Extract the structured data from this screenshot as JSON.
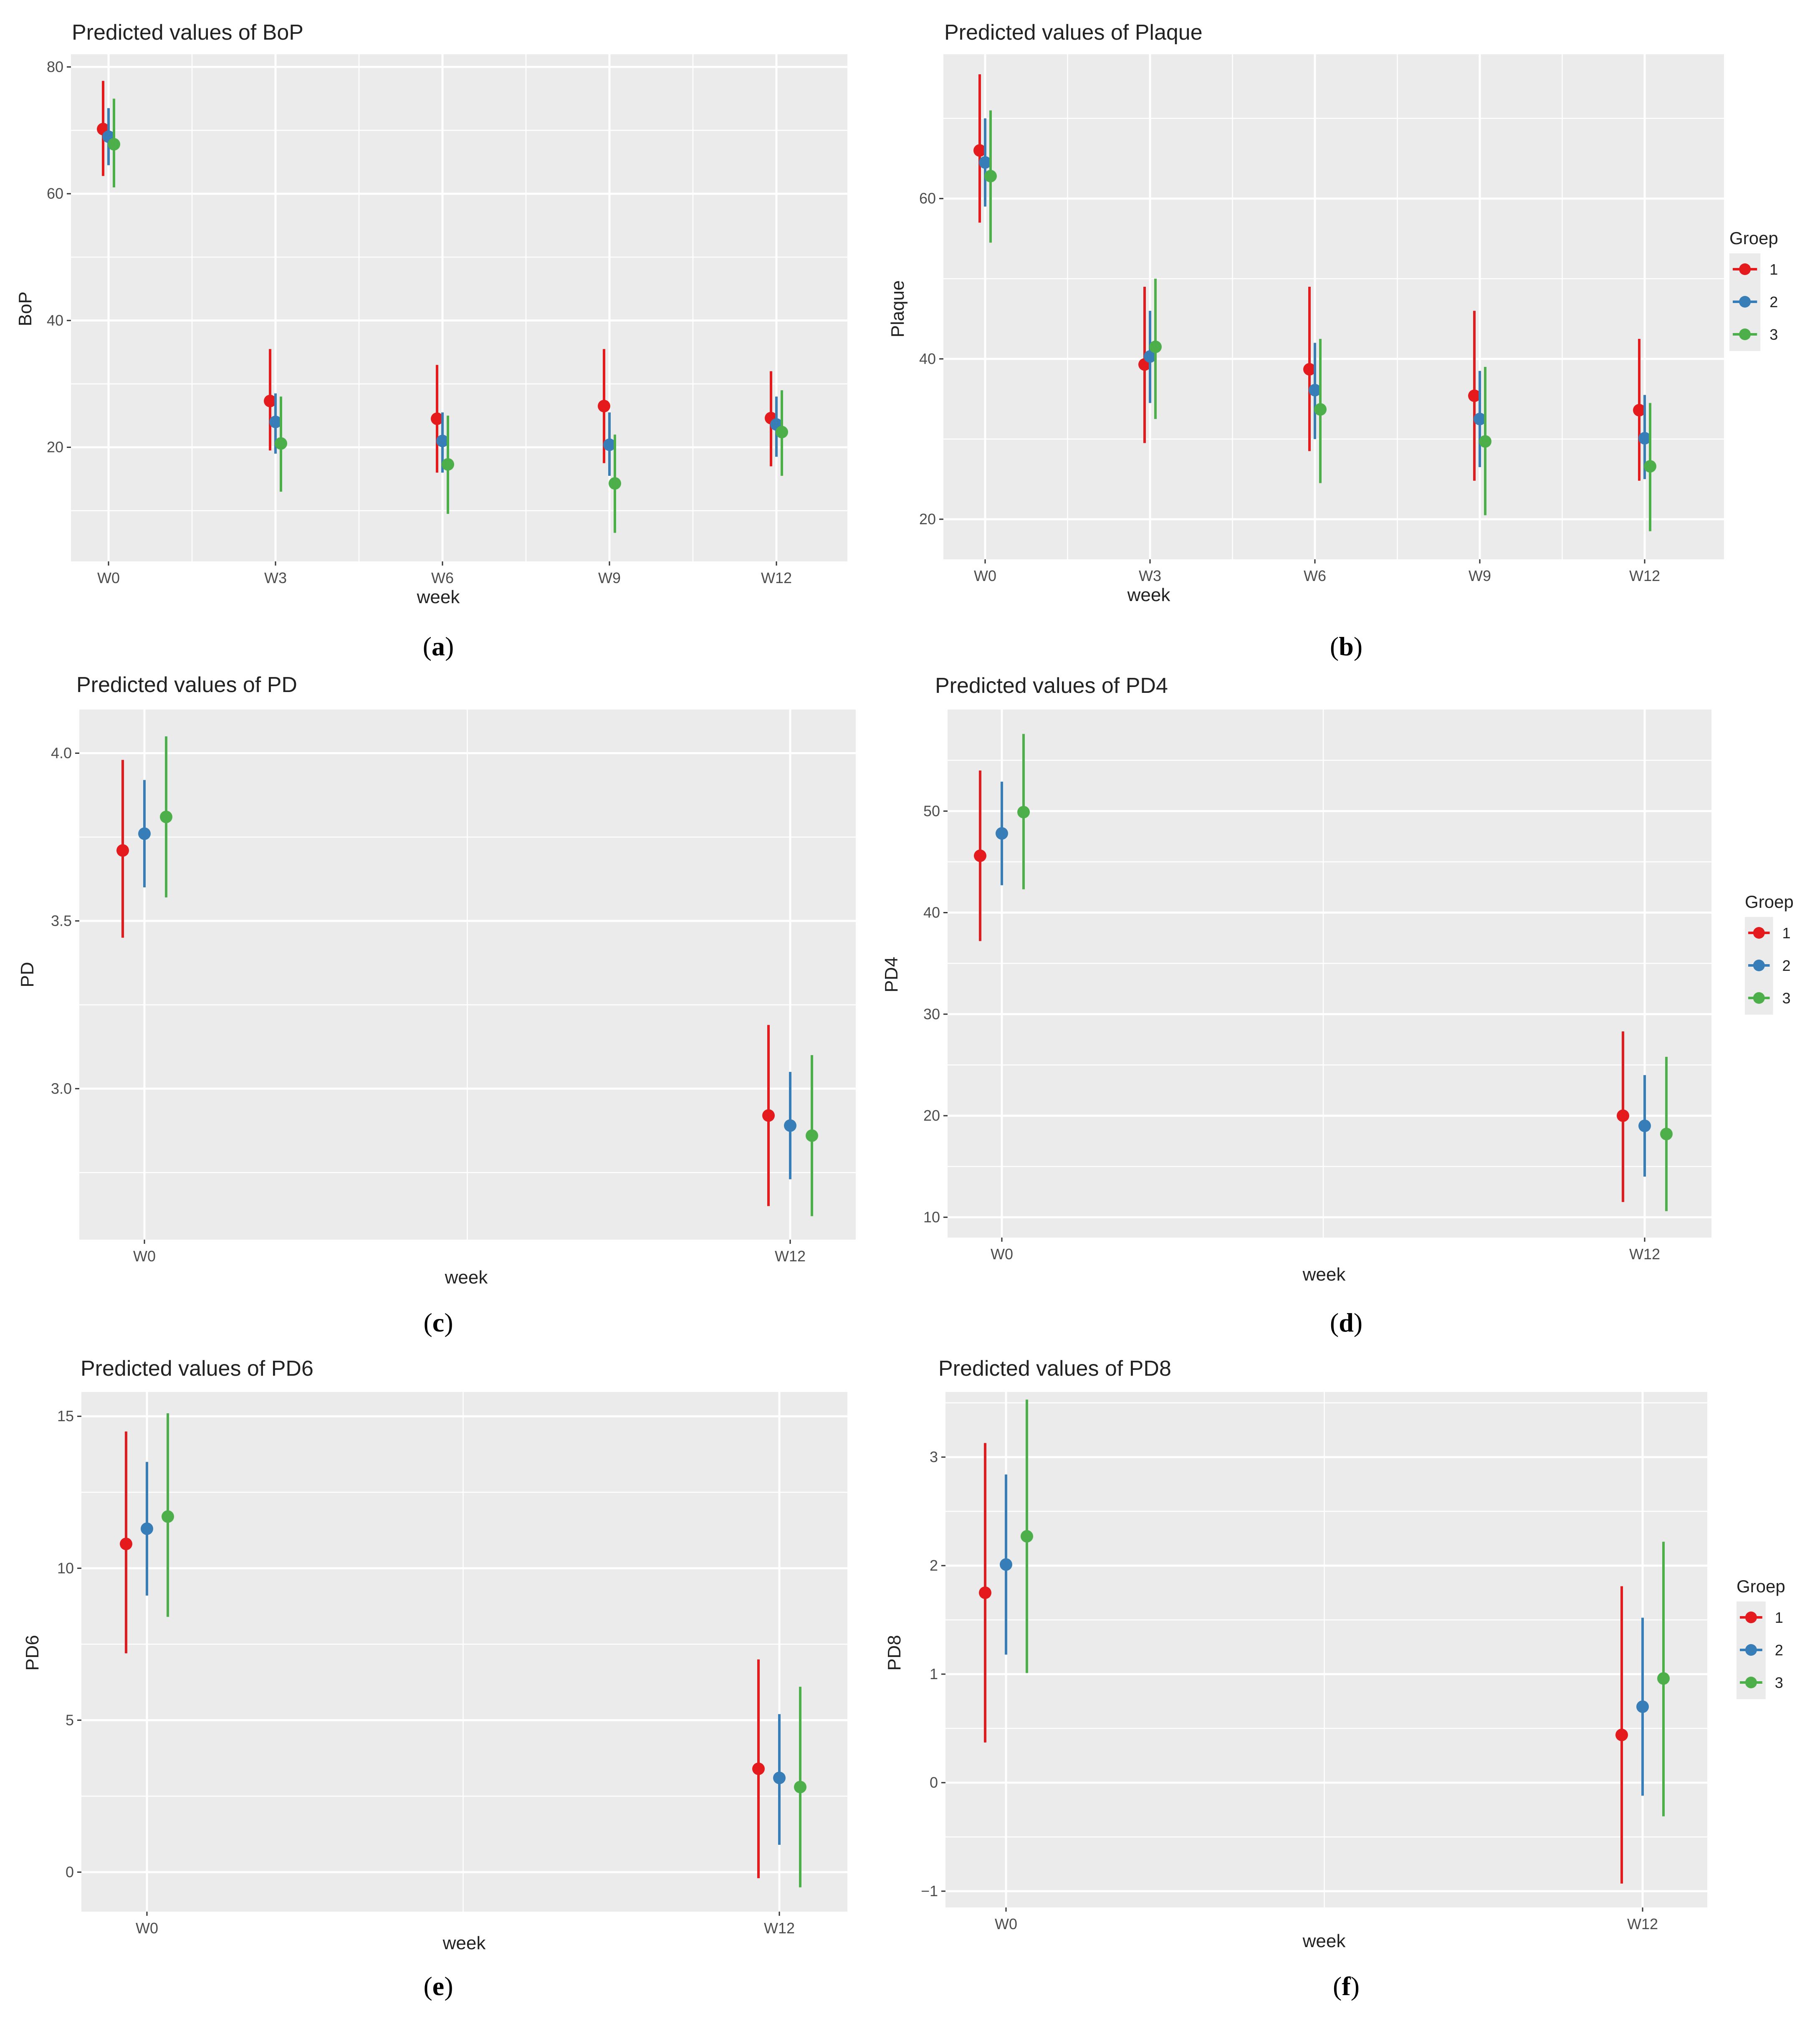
{
  "colors": {
    "panel_bg": "#EBEBEB",
    "grid": "#FFFFFF",
    "group_1": "#E41A1C",
    "group_2": "#377EB8",
    "group_3": "#4DAF4A"
  },
  "chart_data": [
    {
      "type": "pointrange",
      "panel_label": "a",
      "title": "Predicted values of BoP",
      "xlabel": "week",
      "ylabel": "BoP",
      "categories": [
        "W0",
        "W3",
        "W6",
        "W9",
        "W12"
      ],
      "ylim": [
        2,
        82
      ],
      "yticks": [
        20,
        40,
        60,
        80
      ],
      "legend": null,
      "series": [
        {
          "name": "1",
          "values": [
            70.2,
            27.3,
            24.5,
            26.5,
            24.6
          ],
          "lower": [
            62.8,
            19.5,
            16.0,
            17.5,
            17.0
          ],
          "upper": [
            77.8,
            35.5,
            33.0,
            35.5,
            32.0
          ]
        },
        {
          "name": "2",
          "values": [
            69.0,
            24.0,
            21.0,
            20.4,
            23.6
          ],
          "lower": [
            64.5,
            19.0,
            16.0,
            15.5,
            18.5
          ],
          "upper": [
            73.5,
            28.5,
            25.5,
            25.5,
            28.0
          ]
        },
        {
          "name": "3",
          "values": [
            67.8,
            20.6,
            17.3,
            14.3,
            22.4
          ],
          "lower": [
            61.0,
            13.0,
            9.5,
            6.5,
            15.5
          ],
          "upper": [
            75.0,
            28.0,
            25.0,
            22.0,
            29.0
          ]
        }
      ]
    },
    {
      "type": "pointrange",
      "panel_label": "b",
      "title": "Predicted values of Plaque",
      "xlabel": "week",
      "ylabel": "Plaque",
      "categories": [
        "W0",
        "W3",
        "W6",
        "W9",
        "W12"
      ],
      "ylim": [
        15,
        78
      ],
      "yticks": [
        20,
        40,
        60
      ],
      "legend": {
        "title": "Groep",
        "labels": [
          "1",
          "2",
          "3"
        ],
        "position": "right"
      },
      "series": [
        {
          "name": "1",
          "values": [
            66.0,
            39.3,
            38.7,
            35.4,
            33.6
          ],
          "lower": [
            57.0,
            29.5,
            28.5,
            24.8,
            24.8
          ],
          "upper": [
            75.5,
            49.0,
            49.0,
            46.0,
            42.5
          ]
        },
        {
          "name": "2",
          "values": [
            64.5,
            40.3,
            36.1,
            32.5,
            30.1
          ],
          "lower": [
            59.0,
            34.5,
            30.0,
            26.5,
            25.0
          ],
          "upper": [
            70.0,
            46.0,
            42.0,
            38.5,
            35.5
          ]
        },
        {
          "name": "3",
          "values": [
            62.8,
            41.5,
            33.7,
            29.7,
            26.6
          ],
          "lower": [
            54.5,
            32.5,
            24.5,
            20.5,
            18.5
          ],
          "upper": [
            71.0,
            50.0,
            42.5,
            39.0,
            34.5
          ]
        }
      ]
    },
    {
      "type": "pointrange",
      "panel_label": "c",
      "title": "Predicted values of PD",
      "xlabel": "week",
      "ylabel": "PD",
      "categories": [
        "W0",
        "W12"
      ],
      "ylim": [
        2.55,
        4.13
      ],
      "yticks": [
        3.0,
        3.5,
        4.0
      ],
      "ytick_labels": [
        "3.0",
        "3.5",
        "4.0"
      ],
      "legend": null,
      "series": [
        {
          "name": "1",
          "values": [
            3.71,
            2.92
          ],
          "lower": [
            3.45,
            2.65
          ],
          "upper": [
            3.98,
            3.19
          ]
        },
        {
          "name": "2",
          "values": [
            3.76,
            2.89
          ],
          "lower": [
            3.6,
            2.73
          ],
          "upper": [
            3.92,
            3.05
          ]
        },
        {
          "name": "3",
          "values": [
            3.81,
            2.86
          ],
          "lower": [
            3.57,
            2.62
          ],
          "upper": [
            4.05,
            3.1
          ]
        }
      ]
    },
    {
      "type": "pointrange",
      "panel_label": "d",
      "title": "Predicted values of PD4",
      "xlabel": "week",
      "ylabel": "PD4",
      "categories": [
        "W0",
        "W12"
      ],
      "ylim": [
        8,
        60
      ],
      "yticks": [
        10,
        20,
        30,
        40,
        50
      ],
      "legend": {
        "title": "Groep",
        "labels": [
          "1",
          "2",
          "3"
        ],
        "position": "right"
      },
      "series": [
        {
          "name": "1",
          "values": [
            45.6,
            20.0
          ],
          "lower": [
            37.2,
            11.5
          ],
          "upper": [
            54.0,
            28.3
          ]
        },
        {
          "name": "2",
          "values": [
            47.8,
            19.0
          ],
          "lower": [
            42.7,
            14.0
          ],
          "upper": [
            52.9,
            24.0
          ]
        },
        {
          "name": "3",
          "values": [
            49.9,
            18.2
          ],
          "lower": [
            42.3,
            10.6
          ],
          "upper": [
            57.6,
            25.8
          ]
        }
      ]
    },
    {
      "type": "pointrange",
      "panel_label": "e",
      "title": "Predicted values of PD6",
      "xlabel": "week",
      "ylabel": "PD6",
      "categories": [
        "W0",
        "W12"
      ],
      "ylim": [
        -1.3,
        15.8
      ],
      "yticks": [
        0,
        5,
        10,
        15
      ],
      "legend": null,
      "series": [
        {
          "name": "1",
          "values": [
            10.8,
            3.4
          ],
          "lower": [
            7.2,
            -0.2
          ],
          "upper": [
            14.5,
            7.0
          ]
        },
        {
          "name": "2",
          "values": [
            11.3,
            3.1
          ],
          "lower": [
            9.1,
            0.9
          ],
          "upper": [
            13.5,
            5.2
          ]
        },
        {
          "name": "3",
          "values": [
            11.7,
            2.8
          ],
          "lower": [
            8.4,
            -0.5
          ],
          "upper": [
            15.1,
            6.1
          ]
        }
      ]
    },
    {
      "type": "pointrange",
      "panel_label": "f",
      "title": "Predicted values of PD8",
      "xlabel": "week",
      "ylabel": "PD8",
      "categories": [
        "W0",
        "W12"
      ],
      "ylim": [
        -1.15,
        3.6
      ],
      "yticks": [
        -1,
        0,
        1,
        2,
        3
      ],
      "ytick_labels": [
        "−1",
        "0",
        "1",
        "2",
        "3"
      ],
      "legend": {
        "title": "Groep",
        "labels": [
          "1",
          "2",
          "3"
        ],
        "position": "right"
      },
      "series": [
        {
          "name": "1",
          "values": [
            1.75,
            0.44
          ],
          "lower": [
            0.37,
            -0.93
          ],
          "upper": [
            3.13,
            1.81
          ]
        },
        {
          "name": "2",
          "values": [
            2.01,
            0.7
          ],
          "lower": [
            1.18,
            -0.12
          ],
          "upper": [
            2.84,
            1.52
          ]
        },
        {
          "name": "3",
          "values": [
            2.27,
            0.96
          ],
          "lower": [
            1.01,
            -0.31
          ],
          "upper": [
            3.53,
            2.22
          ]
        }
      ]
    }
  ]
}
